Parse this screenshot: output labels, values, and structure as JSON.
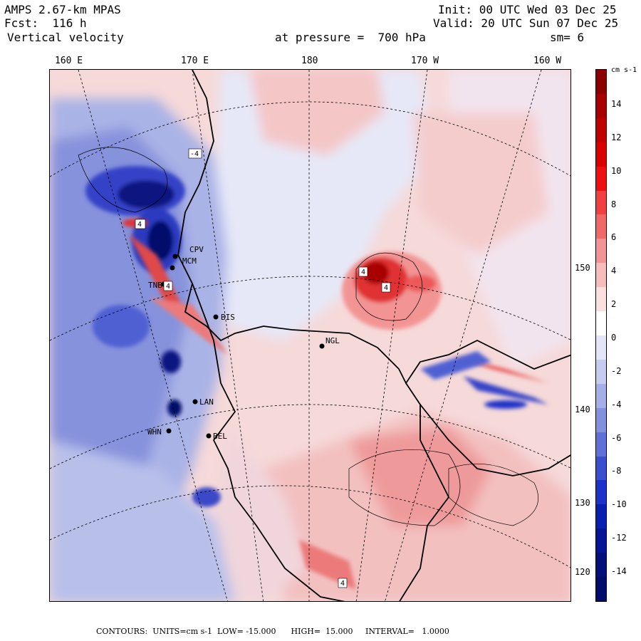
{
  "header": {
    "model": "AMPS 2.67-km MPAS",
    "forecast": "Fcst:  116 h",
    "field": "Vertical velocity",
    "pressure": "at pressure =  700 hPa",
    "init": "Init: 00 UTC Wed 03 Dec 25",
    "valid": "Valid: 20 UTC Sun 07 Dec 25",
    "smoothing": "sm= 6"
  },
  "longitude_labels": [
    "160 E",
    "170 E",
    "180",
    "170 W",
    "160 W"
  ],
  "latitude_labels": [
    "150 W",
    "140 W",
    "130 W",
    "120 W"
  ],
  "stations": [
    "CPV",
    "MCM",
    "TNB",
    "BIS",
    "NGL",
    "LAN",
    "WHN",
    "BEL"
  ],
  "contour_labels": [
    "4",
    "4",
    "4",
    "4",
    "4",
    "-4"
  ],
  "colorbar": {
    "units": "cm s-1",
    "ticks": [
      "14",
      "12",
      "10",
      "8",
      "6",
      "4",
      "2",
      "0",
      "-2",
      "-4",
      "-6",
      "-8",
      "-10",
      "-12",
      "-14"
    ],
    "colors": [
      "#8b0000",
      "#a80000",
      "#c00000",
      "#d80000",
      "#ee1010",
      "#f04040",
      "#f06868",
      "#f39494",
      "#f7bcbc",
      "#fbe0e0",
      "#ffffff",
      "#e4e6f8",
      "#c6cbf0",
      "#a6aee8",
      "#8390e0",
      "#6070d8",
      "#3c4ed0",
      "#1c32c8",
      "#0a1eb0",
      "#061496",
      "#03107c",
      "#020c6a"
    ]
  },
  "footer": {
    "text": "CONTOURS:  UNITS=cm s-1  LOW= -15.000      HIGH=  15.000     INTERVAL=   1.0000"
  }
}
